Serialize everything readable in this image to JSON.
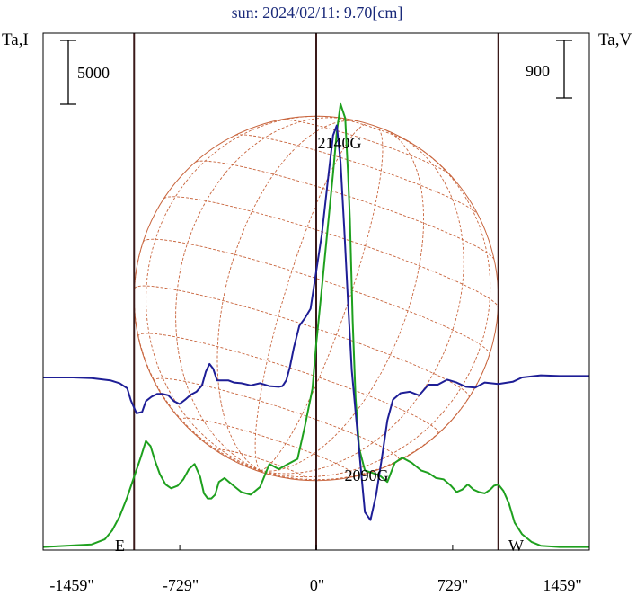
{
  "title": "sun: 2024/02/11: 9.70[cm]",
  "y_left_label": "Ta,I",
  "y_right_label": "Ta,V",
  "scale_left_label": "5000",
  "scale_right_label": "900",
  "label_east": "E",
  "label_west": "W",
  "annotations": [
    "2140G",
    "2090G"
  ],
  "colors": {
    "background": "#ffffff",
    "frame": "#000000",
    "vertical_lines": "#3a1a1a",
    "sun_grid": "#c8643c",
    "series_I": "#1ea01e",
    "series_V": "#1e1e96",
    "title": "#1a2a7a"
  },
  "chart_data": {
    "type": "line",
    "title": "sun: 2024/02/11: 9.70[cm]",
    "xlabel": "",
    "ylabel_left": "Ta,I",
    "ylabel_right": "Ta,V",
    "xlim": [
      -1459,
      1459
    ],
    "x_ticks": [
      -1459,
      -729,
      0,
      729,
      1459
    ],
    "x_tick_labels": [
      "-1459\"",
      "-729\"",
      "0\"",
      "729\"",
      "1459\""
    ],
    "vertical_markers": [
      -973,
      0,
      973
    ],
    "solar_disk_radius": 973,
    "grid": false,
    "series": [
      {
        "name": "Ta,I",
        "axis": "left",
        "x": [
          -1459,
          -1200,
          -1130,
          -1090,
          -1050,
          -1010,
          -973,
          -940,
          -910,
          -885,
          -860,
          -835,
          -805,
          -775,
          -740,
          -710,
          -680,
          -650,
          -620,
          -600,
          -580,
          -560,
          -540,
          -520,
          -490,
          -450,
          -400,
          -350,
          -300,
          -250,
          -200,
          -150,
          -100,
          -60,
          -20,
          0,
          30,
          60,
          90,
          110,
          130,
          155,
          170,
          180,
          195,
          210,
          230,
          260,
          300,
          340,
          380,
          420,
          460,
          510,
          560,
          600,
          640,
          680,
          720,
          750,
          780,
          810,
          840,
          870,
          900,
          930,
          950,
          973,
          1000,
          1030,
          1060,
          1100,
          1150,
          1200,
          1300,
          1459
        ],
        "y": [
          100,
          300,
          700,
          1400,
          2500,
          4000,
          5600,
          7000,
          8400,
          8000,
          6800,
          5800,
          5000,
          4700,
          4900,
          5400,
          6200,
          6600,
          5600,
          4300,
          3900,
          3900,
          4200,
          5200,
          5500,
          5000,
          4400,
          4200,
          4800,
          6600,
          6200,
          6600,
          7000,
          9600,
          12500,
          16000,
          20400,
          24900,
          29400,
          32600,
          34800,
          33700,
          29400,
          25800,
          17800,
          11800,
          7800,
          6100,
          5900,
          5700,
          5200,
          6700,
          7100,
          6700,
          6100,
          5900,
          5500,
          5400,
          4900,
          4400,
          4600,
          5000,
          4600,
          4400,
          4300,
          4600,
          4900,
          5000,
          4500,
          3500,
          2000,
          1100,
          500,
          200,
          100,
          100
        ]
      },
      {
        "name": "Ta,V",
        "axis": "right",
        "x": [
          -1459,
          -1300,
          -1200,
          -1100,
          -1050,
          -1010,
          -990,
          -960,
          -930,
          -910,
          -880,
          -850,
          -820,
          -790,
          -760,
          -730,
          -700,
          -670,
          -640,
          -610,
          -590,
          -570,
          -550,
          -530,
          -500,
          -470,
          -440,
          -400,
          -350,
          -300,
          -250,
          -200,
          -180,
          -160,
          -140,
          -120,
          -90,
          -60,
          -30,
          0,
          30,
          60,
          90,
          110,
          130,
          150,
          170,
          190,
          210,
          230,
          260,
          290,
          320,
          350,
          380,
          410,
          450,
          500,
          550,
          600,
          650,
          700,
          750,
          800,
          850,
          900,
          973,
          1050,
          1100,
          1200,
          1300,
          1459
        ],
        "y": [
          0,
          0,
          -10,
          -40,
          -80,
          -150,
          -320,
          -500,
          -480,
          -330,
          -270,
          -230,
          -230,
          -250,
          -330,
          -370,
          -310,
          -240,
          -200,
          -110,
          80,
          190,
          120,
          -40,
          -40,
          -40,
          -70,
          -80,
          -110,
          -80,
          -120,
          -130,
          -120,
          -40,
          150,
          410,
          720,
          830,
          960,
          1480,
          2000,
          2700,
          3380,
          3520,
          3010,
          2060,
          1060,
          100,
          -480,
          -1030,
          -1880,
          -1990,
          -1640,
          -1140,
          -600,
          -310,
          -220,
          -200,
          -250,
          -100,
          -100,
          -30,
          -70,
          -130,
          -140,
          -70,
          -90,
          -60,
          0,
          30,
          20,
          20
        ]
      }
    ],
    "annotations": [
      {
        "text": "2140G",
        "x": 110,
        "y_I": 21600
      },
      {
        "text": "2090G",
        "x": 280,
        "y_I": 3100
      }
    ],
    "scale_bars": [
      {
        "axis": "left",
        "value": 5000
      },
      {
        "axis": "right",
        "value": 900
      }
    ]
  }
}
